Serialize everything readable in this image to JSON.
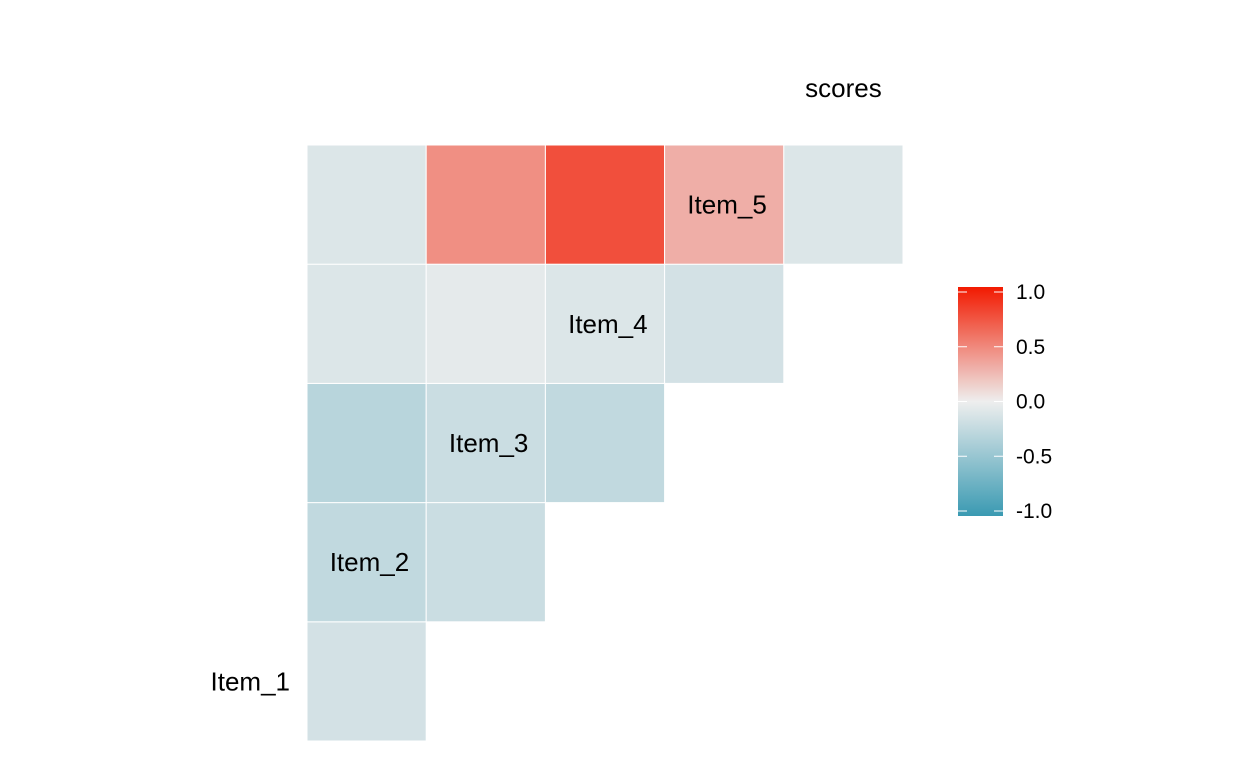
{
  "chart_data": {
    "type": "heatmap",
    "layout": "lower-triangle correlation matrix",
    "variables": [
      "Item_1",
      "Item_2",
      "Item_3",
      "Item_4",
      "Item_5",
      "scores"
    ],
    "cells": [
      {
        "row": "Item_2",
        "col": "Item_1",
        "value": -0.15
      },
      {
        "row": "Item_3",
        "col": "Item_1",
        "value": -0.25
      },
      {
        "row": "Item_3",
        "col": "Item_2",
        "value": -0.2
      },
      {
        "row": "Item_4",
        "col": "Item_1",
        "value": -0.3
      },
      {
        "row": "Item_4",
        "col": "Item_2",
        "value": -0.2
      },
      {
        "row": "Item_4",
        "col": "Item_3",
        "value": -0.25
      },
      {
        "row": "Item_5",
        "col": "Item_1",
        "value": -0.1
      },
      {
        "row": "Item_5",
        "col": "Item_2",
        "value": -0.05
      },
      {
        "row": "Item_5",
        "col": "Item_3",
        "value": -0.1
      },
      {
        "row": "Item_5",
        "col": "Item_4",
        "value": -0.15
      },
      {
        "row": "scores",
        "col": "Item_1",
        "value": -0.1
      },
      {
        "row": "scores",
        "col": "Item_2",
        "value": 0.45
      },
      {
        "row": "scores",
        "col": "Item_3",
        "value": 0.75
      },
      {
        "row": "scores",
        "col": "Item_4",
        "value": 0.3
      },
      {
        "row": "scores",
        "col": "Item_5",
        "value": -0.1
      }
    ],
    "color_scale": {
      "low": "#3A9AB2",
      "mid": "#EEEEEE",
      "high": "#F21A00",
      "limits": [
        -1,
        1
      ],
      "ticks": [
        1.0,
        0.5,
        0.0,
        -0.5,
        -1.0
      ],
      "tick_labels": [
        "1.0",
        "0.5",
        "0.0",
        "-0.5",
        "-1.0"
      ]
    },
    "legend_position": "right",
    "title": "",
    "xlabel": "",
    "ylabel": "",
    "grid": false
  }
}
